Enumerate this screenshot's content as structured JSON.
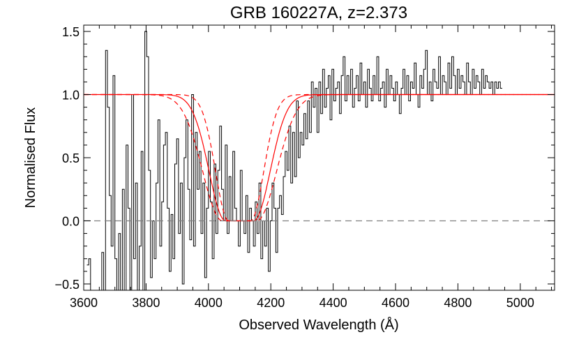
{
  "chart_data": {
    "type": "line",
    "title": "GRB 160227A, z=2.373",
    "xlabel": "Observed Wavelength (Å)",
    "ylabel": "Normalised Flux",
    "xlim": [
      3600,
      5110
    ],
    "ylim": [
      -0.55,
      1.55
    ],
    "xticks": [
      3600,
      3800,
      4000,
      4200,
      4400,
      4600,
      4800,
      5000
    ],
    "xtick_labels": [
      "3600",
      "3800",
      "4000",
      "4200",
      "4400",
      "4600",
      "4800",
      "5000"
    ],
    "yticks": [
      -0.5,
      0.0,
      0.5,
      1.0,
      1.5
    ],
    "ytick_labels": [
      "−0.5",
      "0.0",
      "0.5",
      "1.0",
      "1.5"
    ],
    "grid": false,
    "legend": "none",
    "series": [
      {
        "style": "step",
        "color": "#000000",
        "x_start": 3610,
        "x_step": 6,
        "values": [
          -0.35,
          -0.3,
          -0.55,
          -0.55,
          -0.55,
          -0.55,
          -0.55,
          -0.55,
          -0.25,
          -0.55,
          1.35,
          0.9,
          0.2,
          -0.2,
          1.15,
          -0.3,
          -0.55,
          -0.1,
          -0.55,
          0.25,
          -0.55,
          0.6,
          0.1,
          -0.55,
          1.0,
          -0.3,
          0.3,
          -0.55,
          -0.2,
          0.55,
          -0.55,
          1.5,
          1.3,
          0.4,
          -0.45,
          0.0,
          -0.3,
          0.3,
          0.8,
          -0.2,
          0.15,
          0.6,
          0.7,
          0.1,
          -0.4,
          0.05,
          -0.3,
          0.45,
          0.65,
          -0.1,
          0.3,
          -0.5,
          0.5,
          0.8,
          0.25,
          -0.15,
          1.0,
          -0.2,
          0.7,
          0.25,
          0.55,
          -0.1,
          0.3,
          -0.45,
          0.1,
          0.55,
          0.15,
          -0.3,
          0.45,
          -0.1,
          0.4,
          0.75,
          0.25,
          0.0,
          0.6,
          -0.1,
          0.35,
          0.0,
          0.55,
          0.1,
          0.0,
          -0.2,
          0.4,
          0.0,
          -0.1,
          0.2,
          -0.25,
          0.1,
          0.0,
          -0.2,
          0.15,
          -0.1,
          0.3,
          -0.3,
          0.0,
          -0.2,
          0.1,
          -0.4,
          0.0,
          0.3,
          0.1,
          -0.25,
          0.1,
          0.2,
          0.05,
          0.35,
          0.55,
          0.4,
          0.75,
          0.3,
          0.7,
          0.35,
          0.95,
          0.5,
          0.7,
          0.6,
          0.85,
          0.65,
          0.95,
          0.7,
          1.1,
          0.9,
          1.05,
          0.7,
          1.1,
          0.85,
          1.2,
          0.9,
          1.05,
          1.15,
          0.8,
          1.2,
          0.95,
          1.05,
          1.1,
          0.85,
          1.15,
          1.3,
          0.95,
          1.15,
          1.0,
          1.2,
          0.9,
          1.05,
          1.15,
          0.95,
          1.25,
          1.0,
          1.1,
          0.9,
          1.2,
          1.05,
          0.95,
          1.15,
          1.0,
          1.3,
          0.95,
          1.05,
          1.1,
          0.9,
          1.2,
          1.0,
          1.15,
          1.05,
          0.95,
          1.1,
          1.0,
          0.85,
          1.05,
          1.2,
          1.0,
          1.15,
          0.95,
          1.1,
          1.05,
          1.25,
          1.0,
          0.9,
          1.15,
          1.05,
          1.2,
          1.35,
          1.0,
          1.1,
          0.95,
          1.2,
          1.1,
          1.05,
          1.3,
          1.0,
          1.15,
          1.1,
          1.0,
          1.25,
          1.05,
          1.3,
          1.15,
          1.0,
          1.2,
          1.05,
          1.15,
          1.1,
          1.0,
          1.25,
          1.1,
          1.0,
          1.2,
          1.05,
          1.15,
          1.1,
          1.0,
          1.2,
          1.05,
          1.15,
          1.1,
          1.05,
          1.1,
          1.0,
          1.1,
          1.05,
          1.1,
          1.05
        ]
      },
      {
        "style": "model",
        "color": "#ff0000",
        "dash": "solid",
        "center": 4100,
        "core_halfwidth": 45,
        "wing_width": 75,
        "asymptote": 1.0
      },
      {
        "style": "model",
        "color": "#ff0000",
        "dash": "dashed",
        "center": 4100,
        "core_halfwidth": 35,
        "wing_width": 60,
        "asymptote": 1.0
      },
      {
        "style": "model",
        "color": "#ff0000",
        "dash": "dashed",
        "center": 4100,
        "core_halfwidth": 55,
        "wing_width": 90,
        "asymptote": 1.0
      },
      {
        "style": "hline",
        "color": "#808080",
        "dash": "dashed",
        "y": 0.0
      }
    ]
  }
}
